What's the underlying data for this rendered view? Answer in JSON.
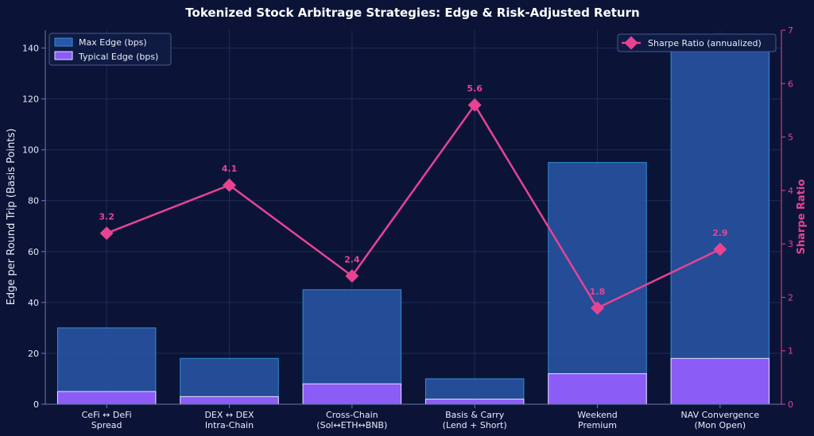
{
  "chart_data": {
    "type": "bar+line",
    "title": "Tokenized Stock Arbitrage Strategies: Edge & Risk-Adjusted Return",
    "categories": [
      [
        "CeFi ↔ DeFi",
        "Spread"
      ],
      [
        "DEX ↔ DEX",
        "Intra-Chain"
      ],
      [
        "Cross-Chain",
        "(Sol↔ETH↔BNB)"
      ],
      [
        "Basis & Carry",
        "(Lend + Short)"
      ],
      [
        "Weekend",
        "Premium"
      ],
      [
        "NAV Convergence",
        "(Mon Open)"
      ]
    ],
    "series": [
      {
        "name": "Max Edge (bps)",
        "type": "bar",
        "axis": "left",
        "color": "#2a56a8",
        "values": [
          30,
          18,
          45,
          10,
          95,
          140
        ]
      },
      {
        "name": "Typical Edge (bps)",
        "type": "bar",
        "axis": "left",
        "color": "#8b5cf6",
        "values": [
          5,
          3,
          8,
          2,
          12,
          18
        ]
      },
      {
        "name": "Sharpe Ratio (annualized)",
        "type": "line",
        "axis": "right",
        "color": "#e84393",
        "values": [
          3.2,
          4.1,
          2.4,
          5.6,
          1.8,
          2.9
        ],
        "labels": [
          "3.2",
          "4.1",
          "2.4",
          "5.6",
          "1.8",
          "2.9"
        ]
      }
    ],
    "ylabel": "Edge per Round Trip (Basis Points)",
    "ylim": [
      0,
      147
    ],
    "yticks": [
      "0",
      "20",
      "40",
      "60",
      "80",
      "100",
      "120",
      "140"
    ],
    "y2label": "Sharpe Ratio",
    "y2lim": [
      0,
      7
    ],
    "y2ticks": [
      "0",
      "1",
      "2",
      "3",
      "4",
      "5",
      "6",
      "7"
    ],
    "grid": true,
    "legend_left": "top-left",
    "legend_right": "top-right",
    "colors": {
      "background": "#0b1437",
      "grid": "#1f2b56",
      "axis": "#6b7aa6",
      "text": "#e8ecf7",
      "sharpe": "#e84393",
      "max_edge_border": "#2f8fd0",
      "typical_edge_border": "#e6e0ff"
    }
  }
}
